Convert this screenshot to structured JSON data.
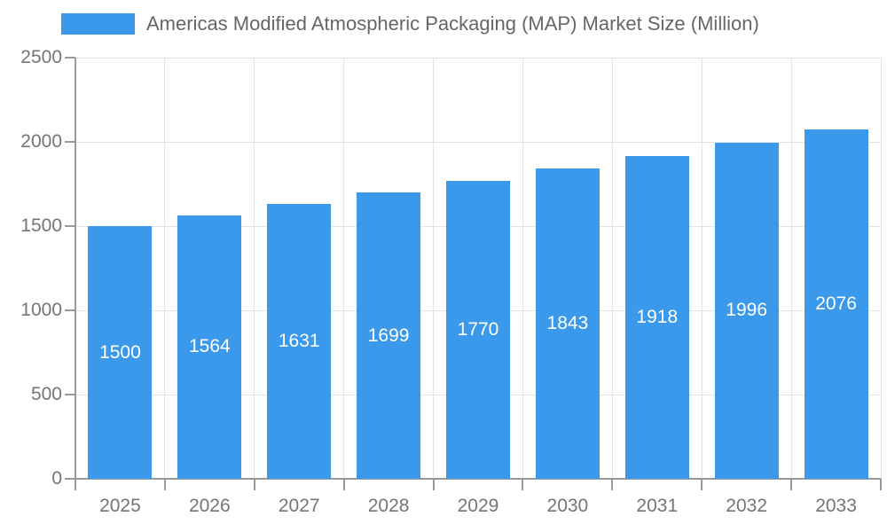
{
  "legend": {
    "label": "Americas Modified Atmospheric Packaging (MAP) Market Size (Million)"
  },
  "chart_data": {
    "type": "bar",
    "title": "Americas Modified Atmospheric Packaging (MAP) Market Size (Million)",
    "categories": [
      "2025",
      "2026",
      "2027",
      "2028",
      "2029",
      "2030",
      "2031",
      "2032",
      "2033"
    ],
    "values": [
      1500,
      1564,
      1631,
      1699,
      1770,
      1843,
      1918,
      1996,
      2076
    ],
    "xlabel": "",
    "ylabel": "",
    "ylim": [
      0,
      2500
    ],
    "yticks": [
      0,
      500,
      1000,
      1500,
      2000,
      2500
    ],
    "grid": true,
    "legend_position": "top-left",
    "value_labels": "inside-center-white"
  },
  "colors": {
    "bar": "#3B99EC",
    "gridline": "#E4E4E4",
    "axis": "#999999",
    "tick": "#999999",
    "axis_text": "#757575",
    "title_text": "#666666",
    "value_text": "#ffffff"
  }
}
